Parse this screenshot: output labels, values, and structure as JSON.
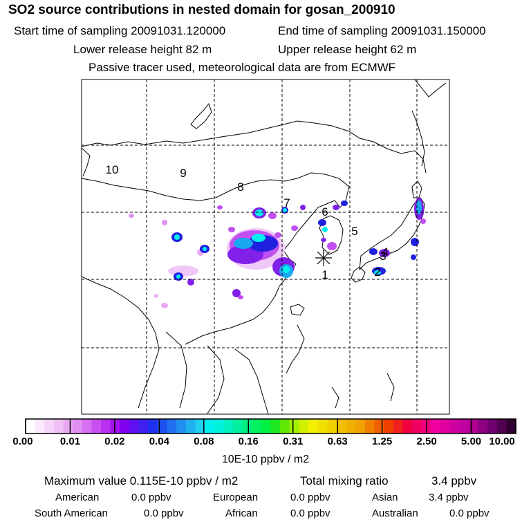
{
  "header": {
    "title": "SO2 source contributions in nested domain for gosan_200910",
    "start_time": "Start time of sampling 20091031.120000",
    "end_time": "End time of sampling 20091031.150000",
    "lower_release": "Lower release height   82 m",
    "upper_release": "Upper release height   62 m",
    "note": "Passive tracer used, meteorological data are from ECMWF"
  },
  "map": {
    "region_labels": [
      "10",
      "9",
      "8",
      "7",
      "6",
      "5",
      "4",
      "3",
      "2",
      "1"
    ],
    "receptor_marker": "asterisk",
    "colors": {
      "pale": "#f0c8f8",
      "magenta": "#c050f0",
      "violet": "#8020e8",
      "blue": "#2020e0",
      "sky": "#18a8f0",
      "cyan": "#00f0f0"
    }
  },
  "colorbar": {
    "labels": [
      "0.00",
      "0.01",
      "0.02",
      "0.04",
      "0.08",
      "0.16",
      "0.31",
      "0.63",
      "1.25",
      "2.50",
      "5.00",
      "10.00"
    ],
    "unit": "10E-10 ppbv / m2",
    "colors": [
      "#ffffff",
      "#fae8fb",
      "#f6d4f8",
      "#f0bff5",
      "#e8a8f3",
      "#e090f2",
      "#d670f0",
      "#c850f0",
      "#b830f0",
      "#a010f0",
      "#8000f0",
      "#6010f0",
      "#4020f0",
      "#2030f0",
      "#2050f0",
      "#2070f0",
      "#2090f0",
      "#20b0f0",
      "#20d0f0",
      "#00f0f0",
      "#00f0e0",
      "#00f0c0",
      "#00f0a0",
      "#00f080",
      "#00f060",
      "#00f040",
      "#20e820",
      "#60e800",
      "#a0f000",
      "#d0f000",
      "#f0f000",
      "#f0e000",
      "#f0d000",
      "#f0c000",
      "#f0b000",
      "#f0a000",
      "#f08000",
      "#f06000",
      "#f04000",
      "#f02020",
      "#f00040",
      "#f00060",
      "#f00080",
      "#f000a0",
      "#e000a0",
      "#d000a0",
      "#c000a0",
      "#b00090",
      "#900080",
      "#700070",
      "#500050",
      "#300030"
    ]
  },
  "summary": {
    "max_value": "Maximum value  0.115E-10 ppbv / m2",
    "total_label": "Total mixing ratio",
    "total_value": "3.4 ppbv",
    "regions": [
      {
        "name": "American",
        "value": "0.0 ppbv"
      },
      {
        "name": "European",
        "value": "0.0 ppbv"
      },
      {
        "name": "Asian",
        "value": "3.4 ppbv"
      },
      {
        "name": "South American",
        "value": "0.0 ppbv"
      },
      {
        "name": "African",
        "value": "0.0 ppbv"
      },
      {
        "name": "Australian",
        "value": "0.0 ppbv"
      }
    ]
  }
}
